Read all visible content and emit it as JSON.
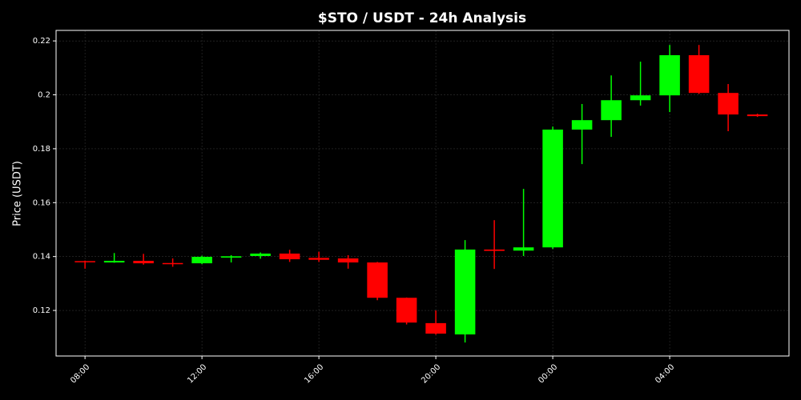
{
  "chart_data": {
    "type": "candlestick",
    "title": "$STO / USDT - 24h Analysis",
    "ylabel": "Price (USDT)",
    "x": [
      8,
      9,
      10,
      11,
      12,
      13,
      14,
      15,
      16,
      17,
      18,
      19,
      20,
      21,
      22,
      23,
      24,
      25,
      26,
      27,
      28,
      29,
      30,
      31
    ],
    "open": [
      0.1383,
      0.1378,
      0.1384,
      0.1376,
      0.1375,
      0.1396,
      0.1402,
      0.1411,
      0.1395,
      0.1393,
      0.1378,
      0.1247,
      0.1153,
      0.1111,
      0.1426,
      0.1422,
      0.1434,
      0.1871,
      0.1906,
      0.198,
      0.1998,
      0.2147,
      0.2007,
      0.1927
    ],
    "high": [
      0.1385,
      0.1413,
      0.141,
      0.1393,
      0.1403,
      0.1405,
      0.1415,
      0.1425,
      0.1418,
      0.1405,
      0.138,
      0.1248,
      0.12,
      0.1461,
      0.1535,
      0.1651,
      0.1882,
      0.1966,
      0.2072,
      0.2123,
      0.2185,
      0.2185,
      0.204,
      0.193
    ],
    "low": [
      0.1355,
      0.1377,
      0.137,
      0.1362,
      0.1372,
      0.1378,
      0.1392,
      0.138,
      0.138,
      0.1355,
      0.1238,
      0.1148,
      0.111,
      0.1081,
      0.1354,
      0.1402,
      0.1428,
      0.1743,
      0.1844,
      0.196,
      0.1936,
      0.2003,
      0.1865,
      0.1918
    ],
    "close": [
      0.1381,
      0.1384,
      0.1375,
      0.1373,
      0.1399,
      0.1401,
      0.1411,
      0.139,
      0.1388,
      0.1378,
      0.1247,
      0.1155,
      0.1114,
      0.1426,
      0.1421,
      0.1434,
      0.1871,
      0.1906,
      0.198,
      0.1998,
      0.2147,
      0.2007,
      0.1927,
      0.1921
    ],
    "up_color": "#00ff00",
    "down_color": "#ff0000",
    "xlim": [
      7.01,
      32.08
    ],
    "ylim": [
      0.1031,
      0.2239
    ],
    "xticks": [
      {
        "value": 8,
        "label": "08:00"
      },
      {
        "value": 12,
        "label": "12:00"
      },
      {
        "value": 16,
        "label": "16:00"
      },
      {
        "value": 20,
        "label": "20:00"
      },
      {
        "value": 24,
        "label": "00:00"
      },
      {
        "value": 28,
        "label": "04:00"
      }
    ],
    "yticks": [
      0.12,
      0.14,
      0.16,
      0.18,
      0.2,
      0.22
    ],
    "grid": true
  }
}
